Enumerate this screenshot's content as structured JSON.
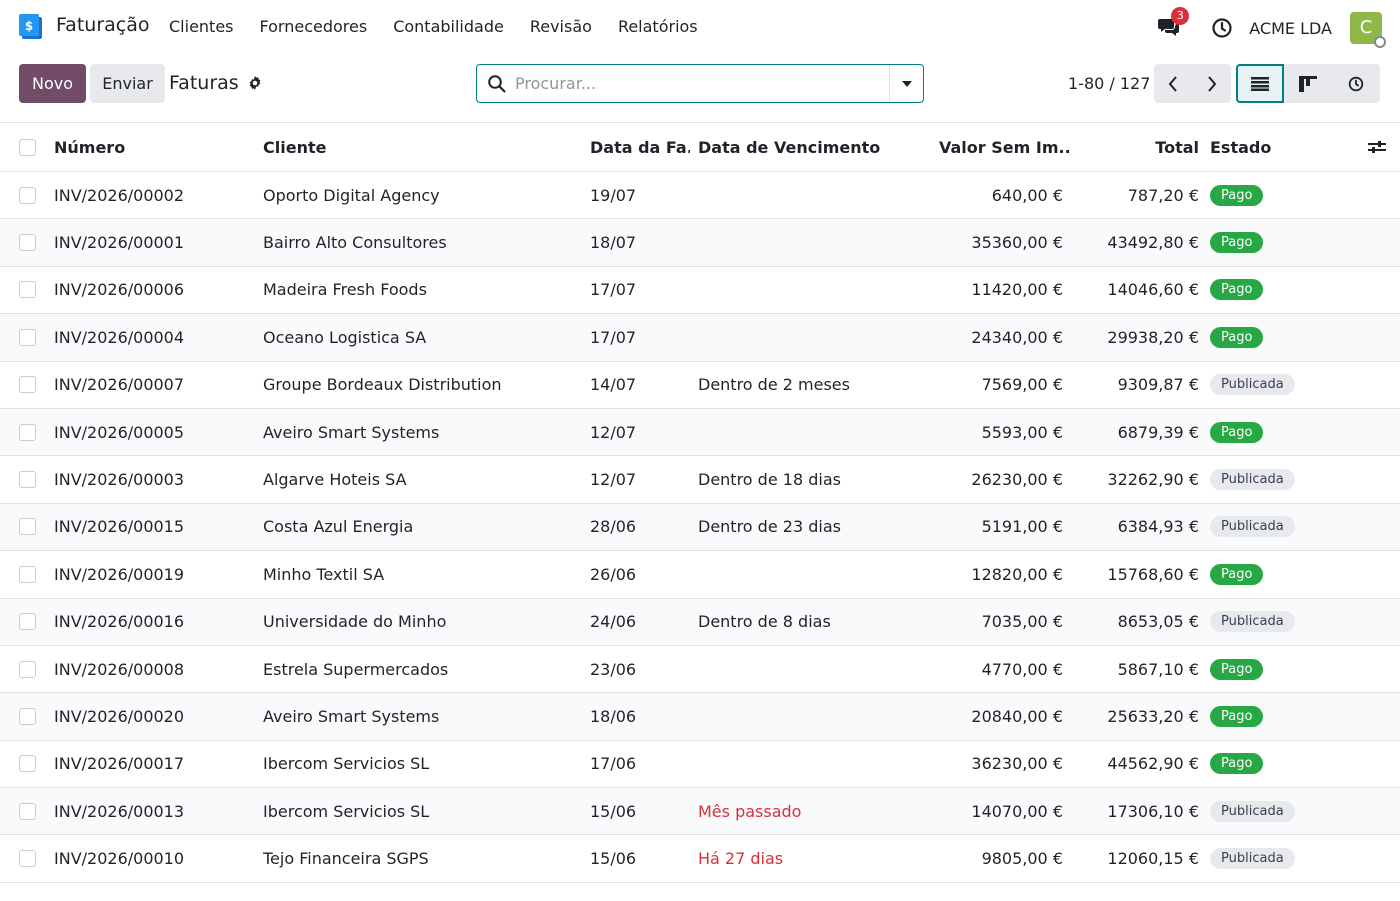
{
  "navbar": {
    "app_name": "Faturação",
    "menu": [
      "Clientes",
      "Fornecedores",
      "Contabilidade",
      "Revisão",
      "Relatórios"
    ],
    "chat_count": "3",
    "company": "ACME LDA",
    "avatar_letter": "C"
  },
  "control": {
    "new_label": "Novo",
    "send_label": "Enviar",
    "breadcrumb": "Faturas",
    "search_placeholder": "Procurar...",
    "pager": "1-80 / 127"
  },
  "table": {
    "headers": {
      "number": "Número",
      "client": "Cliente",
      "date": "Data da Fa...",
      "due": "Data de Vencimento",
      "untaxed": "Valor Sem Im...",
      "total": "Total",
      "state": "Estado"
    },
    "rows": [
      {
        "number": "INV/2026/00002",
        "client": "Oporto Digital Agency",
        "date": "19/07",
        "due": "",
        "due_overdue": false,
        "untaxed": "640,00 €",
        "total": "787,20 €",
        "state": "Pago"
      },
      {
        "number": "INV/2026/00001",
        "client": "Bairro Alto Consultores",
        "date": "18/07",
        "due": "",
        "due_overdue": false,
        "untaxed": "35360,00 €",
        "total": "43492,80 €",
        "state": "Pago"
      },
      {
        "number": "INV/2026/00006",
        "client": "Madeira Fresh Foods",
        "date": "17/07",
        "due": "",
        "due_overdue": false,
        "untaxed": "11420,00 €",
        "total": "14046,60 €",
        "state": "Pago"
      },
      {
        "number": "INV/2026/00004",
        "client": "Oceano Logistica SA",
        "date": "17/07",
        "due": "",
        "due_overdue": false,
        "untaxed": "24340,00 €",
        "total": "29938,20 €",
        "state": "Pago"
      },
      {
        "number": "INV/2026/00007",
        "client": "Groupe Bordeaux Distribution",
        "date": "14/07",
        "due": "Dentro de 2 meses",
        "due_overdue": false,
        "untaxed": "7569,00 €",
        "total": "9309,87 €",
        "state": "Publicada"
      },
      {
        "number": "INV/2026/00005",
        "client": "Aveiro Smart Systems",
        "date": "12/07",
        "due": "",
        "due_overdue": false,
        "untaxed": "5593,00 €",
        "total": "6879,39 €",
        "state": "Pago"
      },
      {
        "number": "INV/2026/00003",
        "client": "Algarve Hoteis SA",
        "date": "12/07",
        "due": "Dentro de 18 dias",
        "due_overdue": false,
        "untaxed": "26230,00 €",
        "total": "32262,90 €",
        "state": "Publicada"
      },
      {
        "number": "INV/2026/00015",
        "client": "Costa Azul Energia",
        "date": "28/06",
        "due": "Dentro de 23 dias",
        "due_overdue": false,
        "untaxed": "5191,00 €",
        "total": "6384,93 €",
        "state": "Publicada"
      },
      {
        "number": "INV/2026/00019",
        "client": "Minho Textil SA",
        "date": "26/06",
        "due": "",
        "due_overdue": false,
        "untaxed": "12820,00 €",
        "total": "15768,60 €",
        "state": "Pago"
      },
      {
        "number": "INV/2026/00016",
        "client": "Universidade do Minho",
        "date": "24/06",
        "due": "Dentro de 8 dias",
        "due_overdue": false,
        "untaxed": "7035,00 €",
        "total": "8653,05 €",
        "state": "Publicada"
      },
      {
        "number": "INV/2026/00008",
        "client": "Estrela Supermercados",
        "date": "23/06",
        "due": "",
        "due_overdue": false,
        "untaxed": "4770,00 €",
        "total": "5867,10 €",
        "state": "Pago"
      },
      {
        "number": "INV/2026/00020",
        "client": "Aveiro Smart Systems",
        "date": "18/06",
        "due": "",
        "due_overdue": false,
        "untaxed": "20840,00 €",
        "total": "25633,20 €",
        "state": "Pago"
      },
      {
        "number": "INV/2026/00017",
        "client": "Ibercom Servicios SL",
        "date": "17/06",
        "due": "",
        "due_overdue": false,
        "untaxed": "36230,00 €",
        "total": "44562,90 €",
        "state": "Pago"
      },
      {
        "number": "INV/2026/00013",
        "client": "Ibercom Servicios SL",
        "date": "15/06",
        "due": "Mês passado",
        "due_overdue": true,
        "untaxed": "14070,00 €",
        "total": "17306,10 €",
        "state": "Publicada"
      },
      {
        "number": "INV/2026/00010",
        "client": "Tejo Financeira SGPS",
        "date": "15/06",
        "due": "Há 27 dias",
        "due_overdue": true,
        "untaxed": "9805,00 €",
        "total": "12060,15 €",
        "state": "Publicada"
      }
    ]
  },
  "colors": {
    "brand": "#714b67",
    "accent": "#017e84",
    "paid": "#28a745",
    "overdue": "#d8303d"
  }
}
